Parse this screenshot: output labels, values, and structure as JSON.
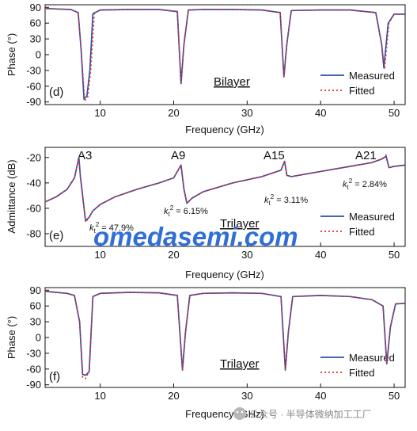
{
  "colors": {
    "measured": "#2b4fa6",
    "fitted": "#e53030",
    "watermark": "#2f6fd6",
    "wechat": "#8a8a8a"
  },
  "watermark": {
    "text": "omedasemi.com",
    "source": "公众号 · 半导体微纳加工工厂"
  },
  "chart_data": [
    {
      "type": "line",
      "panel": "(d)",
      "title": "Bilayer",
      "xlabel": "Frequency (GHz)",
      "ylabel": "Phase (°)",
      "xlim": [
        2.5,
        51.5
      ],
      "ylim": [
        -95,
        95
      ],
      "xticks": [
        10,
        20,
        30,
        40,
        50
      ],
      "yticks": [
        90,
        60,
        30,
        0,
        -30,
        -60,
        -90
      ],
      "ytick_labels": [
        "90",
        "60",
        "30",
        "0",
        "-30",
        "-60",
        "-90"
      ],
      "legend": {
        "position": "bottom-right",
        "entries": [
          "Measured",
          "Fitted"
        ]
      },
      "series": [
        {
          "name": "Measured",
          "style": "solid",
          "x": [
            2.5,
            4,
            6,
            7,
            7.4,
            7.8,
            8.2,
            8.6,
            9,
            10,
            14,
            18,
            20.5,
            21,
            21.4,
            22,
            24,
            28,
            32,
            34.5,
            35,
            35.4,
            36,
            40,
            44,
            47.5,
            48.3,
            48.6,
            49.2,
            50,
            51.5
          ],
          "y": [
            88,
            87,
            86,
            80,
            10,
            -85,
            -78,
            -30,
            78,
            85,
            86,
            86,
            82,
            -55,
            20,
            85,
            86,
            86,
            85,
            80,
            -42,
            20,
            84,
            85,
            85,
            80,
            20,
            -25,
            60,
            77,
            77
          ]
        },
        {
          "name": "Fitted",
          "style": "dotted",
          "x": [
            2.5,
            4,
            6,
            7,
            7.4,
            7.9,
            8.3,
            8.7,
            9.2,
            10,
            14,
            18,
            20.5,
            21,
            21.4,
            22,
            24,
            28,
            32,
            34.5,
            35,
            35.4,
            36,
            40,
            44,
            47.5,
            48.3,
            48.7,
            49.3,
            50,
            51.5
          ],
          "y": [
            88,
            87,
            86,
            80,
            10,
            -88,
            -80,
            -30,
            78,
            85,
            86,
            86,
            82,
            -55,
            20,
            85,
            86,
            86,
            85,
            80,
            -42,
            20,
            84,
            85,
            85,
            80,
            20,
            -28,
            60,
            77,
            77
          ]
        }
      ]
    },
    {
      "type": "line",
      "panel": "(e)",
      "title": "Trilayer",
      "xlabel": "Frequency (GHz)",
      "ylabel": "Admittance (dB)",
      "xlim": [
        2.5,
        51.5
      ],
      "ylim": [
        -90,
        -12
      ],
      "xticks": [
        10,
        20,
        30,
        40,
        50
      ],
      "yticks": [
        -20,
        -40,
        -60,
        -80
      ],
      "ytick_labels": [
        "-20",
        "-40",
        "-60",
        "-80"
      ],
      "legend": {
        "position": "bottom-right",
        "entries": [
          "Measured",
          "Fitted"
        ]
      },
      "resonances": [
        {
          "label": "A3",
          "k_prefix": "k",
          "k_sub": "t",
          "k_sup": "2",
          "k_value": " = 47.9%"
        },
        {
          "label": "A9",
          "k_prefix": "k",
          "k_sub": "t",
          "k_sup": "2",
          "k_value": " = 6.15%"
        },
        {
          "label": "A15",
          "k_prefix": "k",
          "k_sub": "t",
          "k_sup": "2",
          "k_value": " = 3.11%"
        },
        {
          "label": "A21",
          "k_prefix": "k",
          "k_sub": "t",
          "k_sup": "2",
          "k_value": " = 2.84%"
        }
      ],
      "series": [
        {
          "name": "Measured",
          "style": "solid",
          "x": [
            2.5,
            4,
            5.5,
            6.5,
            7.1,
            7.3,
            7.6,
            8,
            8.5,
            9,
            10,
            12,
            15,
            18,
            20,
            21,
            21.4,
            21.8,
            22.5,
            24,
            28,
            32,
            34.6,
            35.1,
            35.4,
            36,
            40,
            44,
            47,
            48.4,
            48.9,
            49.3,
            50,
            51.5
          ],
          "y": [
            -55,
            -51,
            -45,
            -36,
            -20,
            -35,
            -50,
            -70,
            -67,
            -62,
            -57,
            -51,
            -45,
            -40,
            -36,
            -26,
            -45,
            -56,
            -52,
            -47,
            -40,
            -35,
            -30,
            -23,
            -34,
            -35,
            -31,
            -27,
            -24,
            -21,
            -19,
            -28,
            -27,
            -26
          ]
        },
        {
          "name": "Fitted",
          "style": "dotted",
          "x": [
            2.5,
            4,
            5.5,
            6.5,
            7.1,
            7.3,
            7.6,
            8,
            8.5,
            9,
            10,
            12,
            15,
            18,
            20,
            21,
            21.4,
            21.8,
            22.5,
            24,
            28,
            32,
            34.6,
            35.1,
            35.4,
            36,
            40,
            44,
            47,
            48.4,
            48.9,
            49.3,
            50,
            51.5
          ],
          "y": [
            -55,
            -51,
            -45,
            -36,
            -20,
            -35,
            -50,
            -71,
            -67,
            -62,
            -57,
            -51,
            -45,
            -40,
            -36,
            -26,
            -45,
            -56,
            -52,
            -47,
            -40,
            -35,
            -30,
            -23,
            -34,
            -35,
            -31,
            -27,
            -24,
            -21,
            -18,
            -28,
            -27,
            -26
          ]
        }
      ]
    },
    {
      "type": "line",
      "panel": "(f)",
      "title": "Trilayer",
      "xlabel": "Frequency (GHz)",
      "ylabel": "Phase (°)",
      "xlim": [
        2.5,
        51.5
      ],
      "ylim": [
        -95,
        95
      ],
      "xticks": [
        10,
        20,
        30,
        40,
        50
      ],
      "yticks": [
        90,
        60,
        30,
        0,
        -30,
        -60,
        -90
      ],
      "ytick_labels": [
        "90",
        "60",
        "30",
        "0",
        "-30",
        "-60",
        "-90"
      ],
      "legend": {
        "position": "bottom-right",
        "entries": [
          "Measured",
          "Fitted"
        ]
      },
      "series": [
        {
          "name": "Measured",
          "style": "solid",
          "x": [
            2.5,
            4,
            5.5,
            6.5,
            7.2,
            7.6,
            8,
            8.5,
            9,
            10,
            14,
            18,
            20.5,
            21.2,
            21.6,
            22.2,
            24,
            28,
            32,
            34.6,
            35.2,
            35.6,
            36.2,
            40,
            44,
            47,
            48.5,
            49,
            49.5,
            50.2,
            51.5
          ],
          "y": [
            88,
            86,
            84,
            80,
            30,
            -70,
            -72,
            -65,
            78,
            84,
            86,
            85,
            80,
            -62,
            10,
            80,
            84,
            85,
            84,
            78,
            -62,
            10,
            78,
            80,
            78,
            72,
            60,
            -50,
            20,
            64,
            65
          ]
        },
        {
          "name": "Fitted",
          "style": "dotted",
          "x": [
            2.5,
            4,
            5.5,
            6.5,
            7.2,
            7.6,
            8,
            8.5,
            9,
            10,
            14,
            18,
            20.5,
            21.2,
            21.6,
            22.2,
            24,
            28,
            32,
            34.6,
            35.2,
            35.6,
            36.2,
            40,
            44,
            47,
            48.5,
            49,
            49.5,
            50.2,
            51.5
          ],
          "y": [
            88,
            86,
            84,
            80,
            30,
            -76,
            -78,
            -65,
            78,
            84,
            86,
            85,
            80,
            -62,
            10,
            80,
            84,
            85,
            84,
            78,
            -62,
            10,
            78,
            80,
            78,
            72,
            60,
            -50,
            20,
            64,
            65
          ]
        }
      ]
    }
  ]
}
